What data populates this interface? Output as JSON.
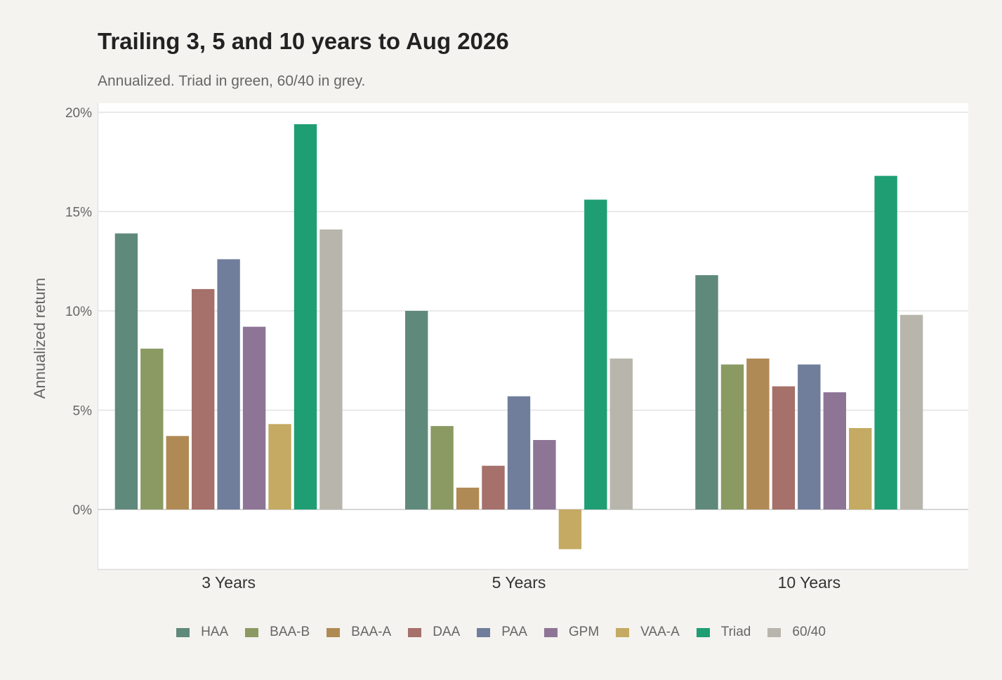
{
  "chart_data": {
    "type": "bar",
    "title": "Trailing 3, 5 and 10 years to Aug 2026",
    "subtitle": "Annualized. Triad in green, 60/40 in grey.",
    "xlabel": "",
    "ylabel": "Annualized return",
    "ylim": [
      -3,
      20.5
    ],
    "yticks": [
      0,
      5,
      10,
      15,
      20
    ],
    "ytick_labels": [
      "0%",
      "5%",
      "10%",
      "15%",
      "20%"
    ],
    "grid": true,
    "legend_position": "bottom",
    "categories": [
      "3 Years",
      "5 Years",
      "10 Years"
    ],
    "series": [
      {
        "name": "HAA",
        "color": "#5f8a7b",
        "values": [
          13.9,
          10.0,
          11.8
        ]
      },
      {
        "name": "BAA-B",
        "color": "#8a9a62",
        "values": [
          8.1,
          4.2,
          7.3
        ]
      },
      {
        "name": "BAA-A",
        "color": "#b08a55",
        "values": [
          3.7,
          1.1,
          7.6
        ]
      },
      {
        "name": "DAA",
        "color": "#a6706b",
        "values": [
          11.1,
          2.2,
          6.2
        ]
      },
      {
        "name": "PAA",
        "color": "#707e9c",
        "values": [
          12.6,
          5.7,
          7.3
        ]
      },
      {
        "name": "GPM",
        "color": "#8e7596",
        "values": [
          9.2,
          3.5,
          5.9
        ]
      },
      {
        "name": "VAA-A",
        "color": "#c4aa62",
        "values": [
          4.3,
          -2.0,
          4.1
        ]
      },
      {
        "name": "Triad",
        "color": "#1f9e74",
        "values": [
          19.4,
          15.6,
          16.8
        ]
      },
      {
        "name": "60/40",
        "color": "#b8b5ac",
        "values": [
          14.1,
          7.6,
          9.8
        ]
      }
    ]
  }
}
